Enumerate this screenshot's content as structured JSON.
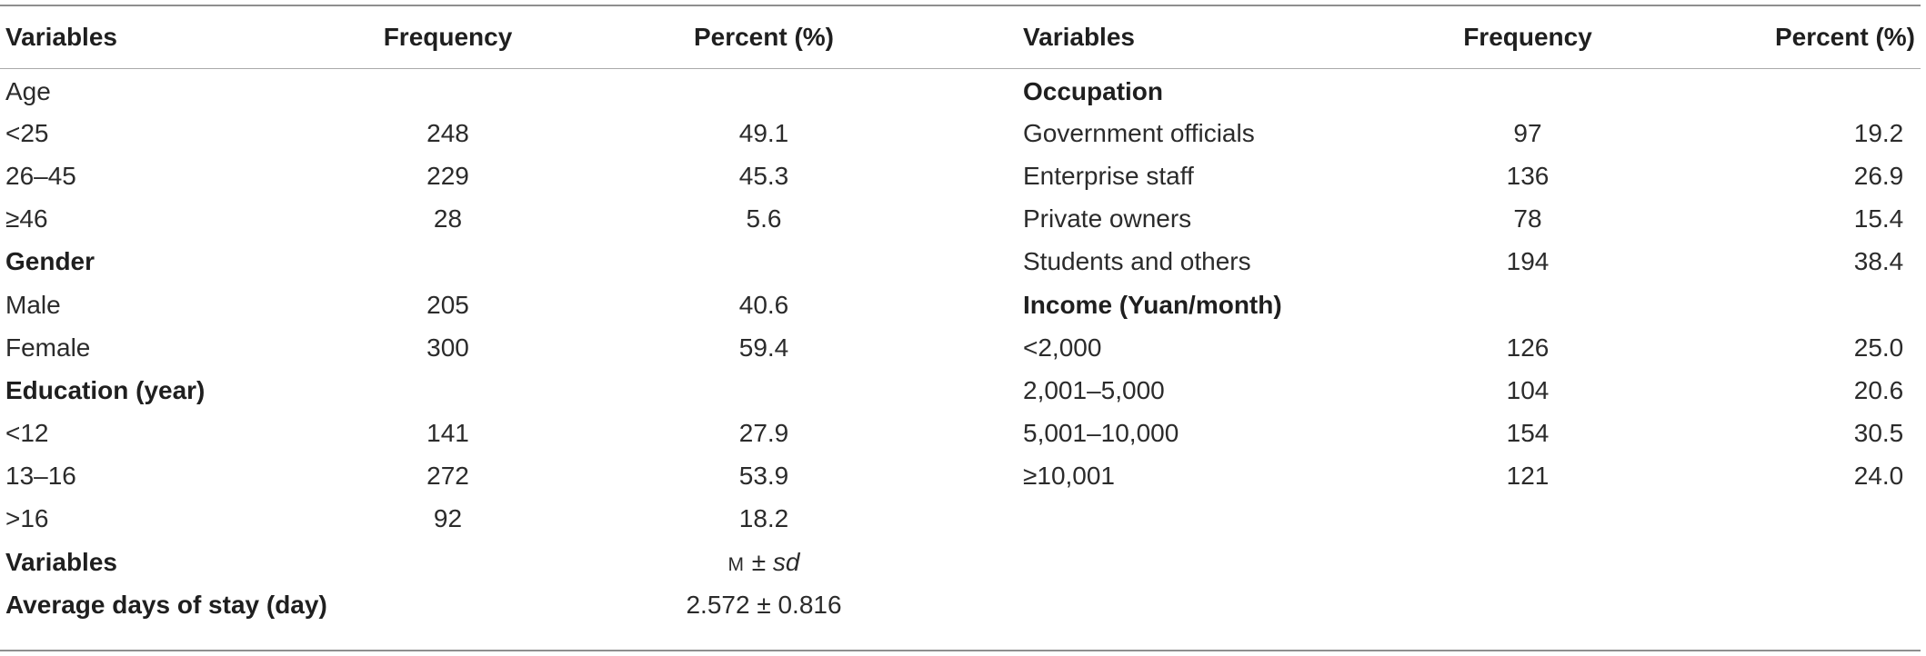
{
  "header": {
    "left": [
      "Variables",
      "Frequency",
      "Percent (%)"
    ],
    "right": [
      "Variables",
      "Frequency",
      "Percent (%)"
    ]
  },
  "left_rows": [
    {
      "label": "Age",
      "frequency": "",
      "percent": "",
      "heading": false
    },
    {
      "label": "<25",
      "frequency": "248",
      "percent": "49.1",
      "heading": false
    },
    {
      "label": "26–45",
      "frequency": "229",
      "percent": "45.3",
      "heading": false
    },
    {
      "label": "≥46",
      "frequency": "28",
      "percent": "5.6",
      "heading": false
    },
    {
      "label": "Gender",
      "frequency": "",
      "percent": "",
      "heading": true
    },
    {
      "label": "Male",
      "frequency": "205",
      "percent": "40.6",
      "heading": false
    },
    {
      "label": "Female",
      "frequency": "300",
      "percent": "59.4",
      "heading": false
    },
    {
      "label": "Education (year)",
      "frequency": "",
      "percent": "",
      "heading": true
    },
    {
      "label": "<12",
      "frequency": "141",
      "percent": "27.9",
      "heading": false
    },
    {
      "label": "13–16",
      "frequency": "272",
      "percent": "53.9",
      "heading": false
    },
    {
      "label": ">16",
      "frequency": "92",
      "percent": "18.2",
      "heading": false
    }
  ],
  "right_rows": [
    {
      "label": "Occupation",
      "frequency": "",
      "percent": "",
      "heading": true
    },
    {
      "label": "Government officials",
      "frequency": "97",
      "percent": "19.2",
      "heading": false
    },
    {
      "label": "Enterprise staff",
      "frequency": "136",
      "percent": "26.9",
      "heading": false
    },
    {
      "label": "Private owners",
      "frequency": "78",
      "percent": "15.4",
      "heading": false
    },
    {
      "label": "Students and others",
      "frequency": "194",
      "percent": "38.4",
      "heading": false
    },
    {
      "label": "Income (Yuan/month)",
      "frequency": "",
      "percent": "",
      "heading": true
    },
    {
      "label": "<2,000",
      "frequency": "126",
      "percent": "25.0",
      "heading": false
    },
    {
      "label": "2,001–5,000",
      "frequency": "104",
      "percent": "20.6",
      "heading": false
    },
    {
      "label": "5,001–10,000",
      "frequency": "154",
      "percent": "30.5",
      "heading": false
    },
    {
      "label": "≥10,001",
      "frequency": "121",
      "percent": "24.0",
      "heading": false
    }
  ],
  "footer": {
    "variables_label": "Variables",
    "stat_m": "M",
    "stat_pm": "±",
    "stat_sd": "sd",
    "stay_label": "Average days of stay (day)",
    "stay_value": "2.572 ± 0.816"
  }
}
